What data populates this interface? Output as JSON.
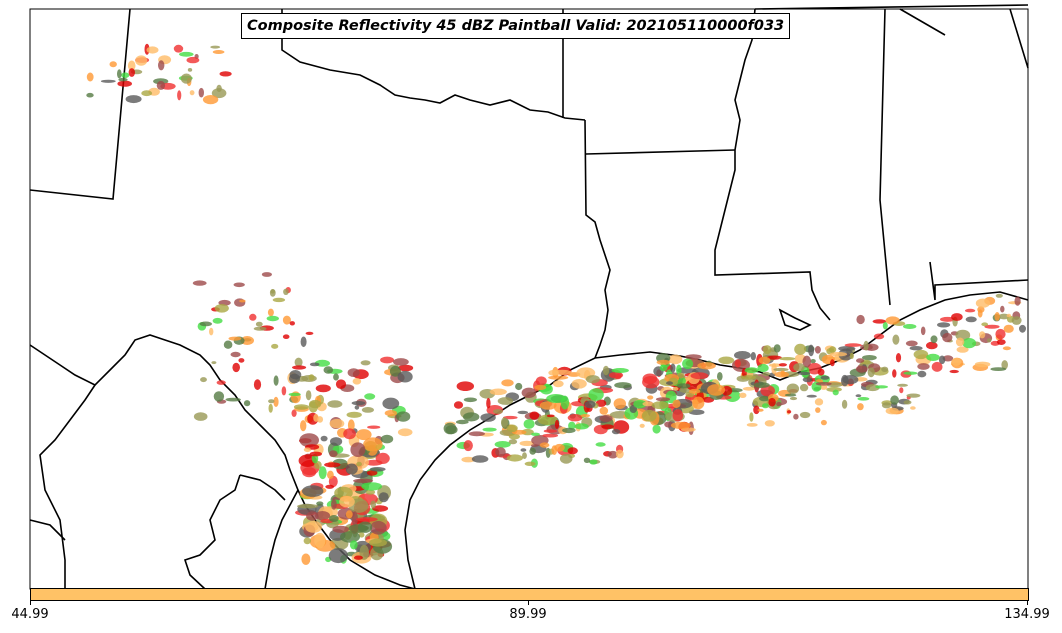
{
  "title": "Composite Reflectivity 45 dBZ Paintball Valid: 202105110000f033",
  "colorbar": {
    "color": "#FFC266",
    "ticks": [
      "44.99",
      "89.99",
      "134.99"
    ]
  },
  "palette": {
    "dark_red": "#9E4A4A",
    "red": "#F03030",
    "bright_red": "#E00000",
    "green": "#44DD44",
    "orange": "#FF9933",
    "light_orange": "#FFBB66",
    "olive": "#AAA844",
    "dark_green": "#557A44",
    "gray": "#5A5A5A",
    "khaki": "#999955"
  }
}
